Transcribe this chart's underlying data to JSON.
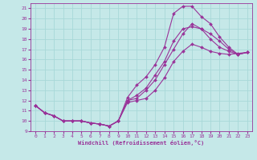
{
  "xlabel": "Windchill (Refroidissement éolien,°C)",
  "xlim": [
    -0.5,
    23.5
  ],
  "ylim": [
    9,
    21.5
  ],
  "xticks": [
    0,
    1,
    2,
    3,
    4,
    5,
    6,
    7,
    8,
    9,
    10,
    11,
    12,
    13,
    14,
    15,
    16,
    17,
    18,
    19,
    20,
    21,
    22,
    23
  ],
  "yticks": [
    9,
    10,
    11,
    12,
    13,
    14,
    15,
    16,
    17,
    18,
    19,
    20,
    21
  ],
  "bg_color": "#c5e8e8",
  "line_color": "#993399",
  "grid_color": "#a8d8d8",
  "curves": [
    {
      "x": [
        0,
        1,
        2,
        3,
        4,
        5,
        6,
        7,
        8,
        9,
        10,
        11,
        12,
        13,
        14,
        15,
        16,
        17,
        18,
        19,
        20,
        21,
        22,
        23
      ],
      "y": [
        11.5,
        10.8,
        10.5,
        10.0,
        10.0,
        10.0,
        9.8,
        9.7,
        9.5,
        10.0,
        11.8,
        12.0,
        12.2,
        13.0,
        14.2,
        15.8,
        16.8,
        17.5,
        17.2,
        16.8,
        16.6,
        16.5,
        16.6,
        16.7
      ]
    },
    {
      "x": [
        0,
        1,
        2,
        3,
        4,
        5,
        6,
        7,
        8,
        9,
        10,
        11,
        12,
        13,
        14,
        15,
        16,
        17,
        18,
        19,
        20,
        21,
        22,
        23
      ],
      "y": [
        11.5,
        10.8,
        10.5,
        10.0,
        10.0,
        10.0,
        9.8,
        9.7,
        9.5,
        10.0,
        12.0,
        12.5,
        13.2,
        14.5,
        15.8,
        17.8,
        19.0,
        19.2,
        19.0,
        18.5,
        17.8,
        17.0,
        16.5,
        16.7
      ]
    },
    {
      "x": [
        0,
        1,
        2,
        3,
        4,
        5,
        6,
        7,
        8,
        9,
        10,
        11,
        12,
        13,
        14,
        15,
        16,
        17,
        18,
        19,
        20,
        21,
        22,
        23
      ],
      "y": [
        11.5,
        10.8,
        10.5,
        10.0,
        10.0,
        10.0,
        9.8,
        9.7,
        9.5,
        10.0,
        12.3,
        13.5,
        14.3,
        15.5,
        17.2,
        20.5,
        21.2,
        21.2,
        20.2,
        19.5,
        18.2,
        17.2,
        16.5,
        16.7
      ]
    },
    {
      "x": [
        0,
        1,
        2,
        3,
        4,
        5,
        6,
        7,
        8,
        9,
        10,
        11,
        12,
        13,
        14,
        15,
        16,
        17,
        18,
        19,
        20,
        21,
        22,
        23
      ],
      "y": [
        11.5,
        10.8,
        10.5,
        10.0,
        10.0,
        10.0,
        9.8,
        9.7,
        9.5,
        10.0,
        12.0,
        12.2,
        13.0,
        14.0,
        15.5,
        17.0,
        18.5,
        19.5,
        19.0,
        18.0,
        17.2,
        16.8,
        16.5,
        16.7
      ]
    }
  ]
}
